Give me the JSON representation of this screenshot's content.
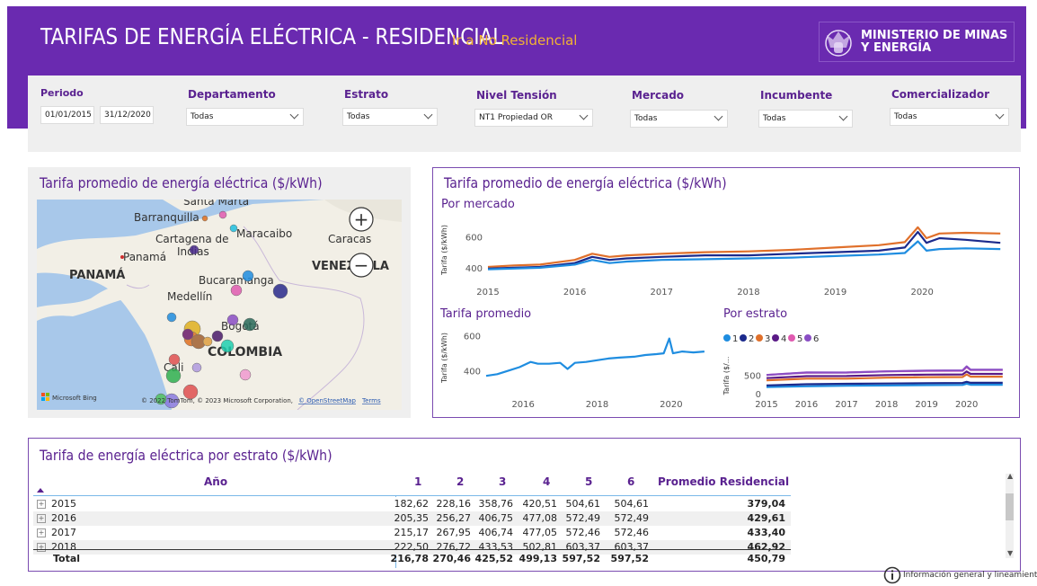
{
  "header": {
    "title": "TARIFAS DE ENERGÍA ELÉCTRICA - RESIDENCIAL",
    "nav_link": "Ir a No Residencial",
    "ministry_line1": "MINISTERIO DE MINAS",
    "ministry_line2": "Y ENERGÍA"
  },
  "filters": {
    "periodo_label": "Periodo",
    "periodo_start": "01/01/2015",
    "periodo_end": "31/12/2020",
    "departamento_label": "Departamento",
    "departamento_value": "Todas",
    "estrato_label": "Estrato",
    "estrato_value": "Todas",
    "nivel_label": "Nivel Tensión",
    "nivel_value": "NT1 Propiedad OR",
    "mercado_label": "Mercado",
    "mercado_value": "Todas",
    "incumbente_label": "Incumbente",
    "incumbente_value": "Todas",
    "comercializador_label": "Comercializador",
    "comercializador_value": "Todas"
  },
  "map": {
    "title": "Tarifa promedio de energía eléctrica ($/kWh)",
    "labels": {
      "santa_marta": "Santa Marta",
      "barranquilla": "Barranquilla",
      "maracaibo": "Maracaibo",
      "cartagena1": "Cartagena de",
      "cartagena2": "Indias",
      "caracas": "Caracas",
      "panama_city": "Panamá",
      "panama": "PANAMÁ",
      "venezuela": "VENEZUELA",
      "bucaramanga": "Bucaramanga",
      "medellin": "Medellín",
      "bogota": "Bogotá",
      "colombia": "COLOMBIA",
      "cali": "Cali"
    },
    "zoom_in": "+",
    "zoom_out": "−",
    "bing": "Microsoft Bing",
    "copyright": "© 2022 TomTom, © 2023 Microsoft Corporation,",
    "osm": "© OpenStreetMap",
    "terms": "Terms"
  },
  "charts": {
    "card_title": "Tarifa promedio de energía eléctrica ($/kWh)",
    "mercado_title": "Por mercado",
    "promedio_title": "Tarifa promedio",
    "estrato_title": "Por estrato",
    "ylabel": "Tarifa ($/kWh)",
    "ylabel_short": "Tarifa ($/...",
    "legend": [
      "1",
      "2",
      "3",
      "4",
      "5",
      "6"
    ],
    "legend_colors": [
      "#1f8de0",
      "#1b2a8c",
      "#e0702b",
      "#5a1a86",
      "#e05ab0",
      "#8a4ec4"
    ]
  },
  "chart_data": [
    {
      "type": "line",
      "title": "Por mercado",
      "ylabel": "Tarifa ($/kWh)",
      "x_ticks": [
        "2015",
        "2016",
        "2017",
        "2018",
        "2019",
        "2020"
      ],
      "y_ticks": [
        400,
        600
      ],
      "ylim": [
        330,
        700
      ],
      "xlim": [
        2015.0,
        2020.95
      ],
      "series": [
        {
          "color": "#e0702b",
          "x": [
            2015.0,
            2015.3,
            2015.6,
            2016.0,
            2016.2,
            2016.4,
            2016.6,
            2017.0,
            2017.5,
            2018.0,
            2018.5,
            2019.0,
            2019.5,
            2019.8,
            2019.95,
            2020.05,
            2020.2,
            2020.5,
            2020.9
          ],
          "y": [
            405,
            415,
            420,
            450,
            490,
            470,
            480,
            490,
            500,
            505,
            515,
            530,
            545,
            565,
            660,
            590,
            620,
            625,
            620
          ]
        },
        {
          "color": "#1b2a8c",
          "x": [
            2015.0,
            2015.3,
            2015.6,
            2016.0,
            2016.2,
            2016.4,
            2016.6,
            2017.0,
            2017.5,
            2018.0,
            2018.5,
            2019.0,
            2019.5,
            2019.8,
            2019.95,
            2020.05,
            2020.2,
            2020.5,
            2020.9
          ],
          "y": [
            395,
            400,
            405,
            430,
            470,
            450,
            460,
            470,
            480,
            480,
            490,
            500,
            510,
            530,
            630,
            560,
            590,
            580,
            560
          ]
        },
        {
          "color": "#1f8de0",
          "x": [
            2015.0,
            2015.3,
            2015.6,
            2016.0,
            2016.2,
            2016.4,
            2016.6,
            2017.0,
            2017.5,
            2018.0,
            2018.5,
            2019.0,
            2019.5,
            2019.8,
            2019.95,
            2020.05,
            2020.2,
            2020.5,
            2020.9
          ],
          "y": [
            390,
            395,
            400,
            420,
            450,
            430,
            440,
            450,
            455,
            460,
            465,
            475,
            485,
            495,
            570,
            510,
            520,
            525,
            520
          ]
        }
      ]
    },
    {
      "type": "line",
      "title": "Tarifa promedio",
      "ylabel": "Tarifa ($/kWh)",
      "x_ticks": [
        "2016",
        "2018",
        "2020"
      ],
      "y_ticks": [
        400,
        600
      ],
      "ylim": [
        340,
        640
      ],
      "xlim": [
        2015.0,
        2020.95
      ],
      "series": [
        {
          "color": "#1f8de0",
          "x": [
            2015.0,
            2015.3,
            2015.6,
            2015.9,
            2016.2,
            2016.4,
            2016.7,
            2017.0,
            2017.2,
            2017.4,
            2017.7,
            2018.0,
            2018.3,
            2018.6,
            2019.0,
            2019.3,
            2019.6,
            2019.8,
            2019.95,
            2020.05,
            2020.3,
            2020.6,
            2020.9
          ],
          "y": [
            370,
            380,
            400,
            420,
            450,
            440,
            440,
            445,
            410,
            445,
            450,
            460,
            470,
            475,
            480,
            490,
            495,
            500,
            585,
            500,
            510,
            505,
            510
          ]
        }
      ]
    },
    {
      "type": "line",
      "title": "Por estrato",
      "ylabel": "Tarifa ($/...",
      "x_ticks": [
        "2015",
        "2016",
        "2017",
        "2018",
        "2019",
        "2020"
      ],
      "y_ticks": [
        0,
        500
      ],
      "ylim": [
        0,
        900
      ],
      "xlim": [
        2015.0,
        2020.95
      ],
      "series": [
        {
          "name": "1",
          "color": "#1f8de0",
          "x": [
            2015.0,
            2016.0,
            2017.0,
            2018.0,
            2019.0,
            2019.9,
            2020.0,
            2020.1,
            2020.9
          ],
          "y": [
            180,
            200,
            215,
            222,
            230,
            235,
            270,
            240,
            240
          ]
        },
        {
          "name": "2",
          "color": "#1b2a8c",
          "x": [
            2015.0,
            2016.0,
            2017.0,
            2018.0,
            2019.0,
            2019.9,
            2020.0,
            2020.1,
            2020.9
          ],
          "y": [
            225,
            255,
            268,
            276,
            285,
            290,
            320,
            295,
            295
          ]
        },
        {
          "name": "3",
          "color": "#e0702b",
          "x": [
            2015.0,
            2016.0,
            2017.0,
            2018.0,
            2019.0,
            2019.9,
            2020.0,
            2020.1,
            2020.9
          ],
          "y": [
            360,
            405,
            405,
            433,
            445,
            450,
            520,
            460,
            460
          ]
        },
        {
          "name": "4",
          "color": "#5a1a86",
          "x": [
            2015.0,
            2016.0,
            2017.0,
            2018.0,
            2019.0,
            2019.9,
            2020.0,
            2020.1,
            2020.9
          ],
          "y": [
            420,
            475,
            477,
            503,
            515,
            520,
            600,
            535,
            535
          ]
        },
        {
          "name": "5",
          "color": "#e05ab0",
          "x": [
            2015.0,
            2016.0,
            2017.0,
            2018.0,
            2019.0,
            2019.9,
            2020.0,
            2020.1,
            2020.9
          ],
          "y": [
            505,
            570,
            572,
            603,
            615,
            620,
            720,
            640,
            640
          ]
        },
        {
          "name": "6",
          "color": "#8a4ec4",
          "x": [
            2015.0,
            2016.0,
            2017.0,
            2018.0,
            2019.0,
            2019.9,
            2020.0,
            2020.1,
            2020.9
          ],
          "y": [
            505,
            575,
            572,
            603,
            625,
            630,
            740,
            650,
            650
          ]
        }
      ]
    }
  ],
  "table": {
    "title": "Tarifa de energía eléctrica por estrato ($/kWh)",
    "headers": [
      "Año",
      "1",
      "2",
      "3",
      "4",
      "5",
      "6",
      "Promedio Residencial"
    ],
    "rows": [
      {
        "year": "2015",
        "v": [
          "182,62",
          "228,16",
          "358,76",
          "420,51",
          "504,61",
          "504,61"
        ],
        "avg": "379,04"
      },
      {
        "year": "2016",
        "v": [
          "205,35",
          "256,27",
          "406,75",
          "477,08",
          "572,49",
          "572,49"
        ],
        "avg": "429,61"
      },
      {
        "year": "2017",
        "v": [
          "215,17",
          "267,95",
          "406,74",
          "477,05",
          "572,46",
          "572,46"
        ],
        "avg": "433,40"
      },
      {
        "year": "2018",
        "v": [
          "222,50",
          "276,72",
          "433,53",
          "502,81",
          "603,37",
          "603,37"
        ],
        "avg": "462,92"
      }
    ],
    "total_label": "Total",
    "total": [
      "216,78",
      "270,46",
      "425,52",
      "499,13",
      "597,52",
      "597,52"
    ],
    "total_avg": "450,79"
  },
  "footer": {
    "info": "Información general y lineamientos"
  }
}
